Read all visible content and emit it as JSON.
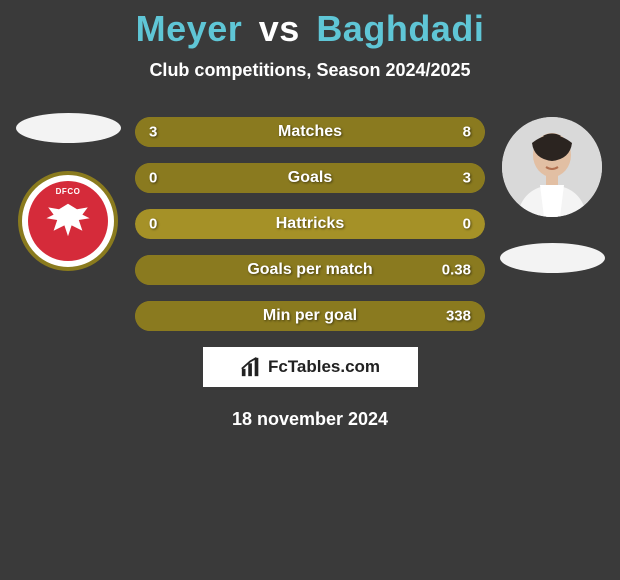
{
  "header": {
    "title_left": "Meyer",
    "title_vs": "vs",
    "title_right": "Baghdadi",
    "title_color_left": "#5fc6d6",
    "title_color_vs": "#ffffff",
    "title_color_right": "#5fc6d6",
    "subtitle": "Club competitions, Season 2024/2025"
  },
  "players": {
    "left": {
      "club_abbr": "DFCO",
      "club_bg": "#d52b3a",
      "club_ring": "#8a7b1e"
    }
  },
  "stats": {
    "bar_base_color": "#a59127",
    "bar_fill_color": "#8a7a1f",
    "rows": [
      {
        "label": "Matches",
        "left": "3",
        "right": "8",
        "left_pct": 27,
        "right_pct": 73
      },
      {
        "label": "Goals",
        "left": "0",
        "right": "3",
        "left_pct": 0,
        "right_pct": 100
      },
      {
        "label": "Hattricks",
        "left": "0",
        "right": "0",
        "left_pct": 0,
        "right_pct": 0
      },
      {
        "label": "Goals per match",
        "left": "",
        "right": "0.38",
        "left_pct": 0,
        "right_pct": 100
      },
      {
        "label": "Min per goal",
        "left": "",
        "right": "338",
        "left_pct": 0,
        "right_pct": 100
      }
    ]
  },
  "footer": {
    "brand": "FcTables.com",
    "date": "18 november 2024"
  },
  "colors": {
    "page_bg": "#3a3a3a",
    "text": "#ffffff",
    "flag_placeholder": "#f3f3f3"
  }
}
